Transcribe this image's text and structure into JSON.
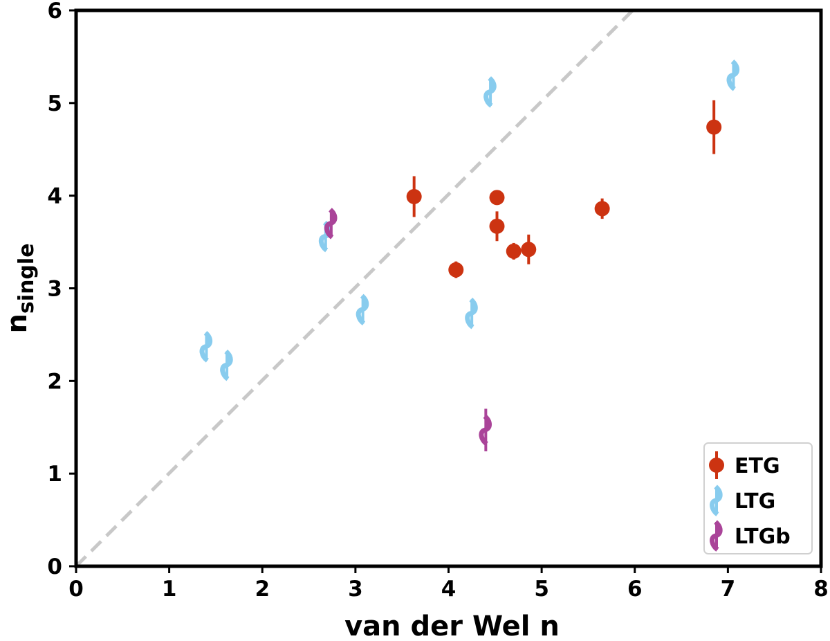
{
  "chart_data": {
    "type": "scatter",
    "xlabel": "van der Wel n",
    "ylabel": "n",
    "ylabel_sub": "single",
    "xlim": [
      0,
      8
    ],
    "ylim": [
      0,
      6
    ],
    "xticks": [
      "0",
      "1",
      "2",
      "3",
      "4",
      "5",
      "6",
      "7",
      "8"
    ],
    "yticks": [
      "0",
      "1",
      "2",
      "3",
      "4",
      "5",
      "6"
    ],
    "grid": false,
    "legend_position": "bottom-right",
    "reference_line": {
      "style": "dashed",
      "color": "#c8c8c8",
      "from": [
        0,
        0
      ],
      "to": [
        6,
        6
      ]
    },
    "series": [
      {
        "name": "ETG",
        "marker": "circle",
        "color": "#cc3311",
        "points": [
          {
            "x": 3.63,
            "y": 3.99,
            "yerr": 0.22
          },
          {
            "x": 4.08,
            "y": 3.2,
            "yerr": 0.09
          },
          {
            "x": 4.52,
            "y": 3.98,
            "yerr": 0.05
          },
          {
            "x": 4.52,
            "y": 3.67,
            "yerr": 0.16
          },
          {
            "x": 4.7,
            "y": 3.4,
            "yerr": 0.09
          },
          {
            "x": 4.86,
            "y": 3.42,
            "yerr": 0.16
          },
          {
            "x": 5.65,
            "y": 3.86,
            "yerr": 0.11
          },
          {
            "x": 6.85,
            "y": 4.74,
            "yerr": 0.29
          }
        ]
      },
      {
        "name": "LTG",
        "marker": "spiral",
        "color": "#88ccee",
        "points": [
          {
            "x": 1.4,
            "y": 2.37,
            "yerr": 0.15
          },
          {
            "x": 1.62,
            "y": 2.17,
            "yerr": 0.15
          },
          {
            "x": 2.68,
            "y": 3.56,
            "yerr": 0.15
          },
          {
            "x": 3.08,
            "y": 2.77,
            "yerr": 0.15
          },
          {
            "x": 4.25,
            "y": 2.73,
            "yerr": 0.15
          },
          {
            "x": 4.45,
            "y": 5.12,
            "yerr": 0.15
          },
          {
            "x": 7.06,
            "y": 5.3,
            "yerr": 0.15
          }
        ]
      },
      {
        "name": "LTGb",
        "marker": "spiral",
        "color": "#aa4499",
        "points": [
          {
            "x": 2.74,
            "y": 3.7,
            "yerr": 0.15
          },
          {
            "x": 4.4,
            "y": 1.47,
            "yerr": 0.23
          }
        ]
      }
    ]
  }
}
